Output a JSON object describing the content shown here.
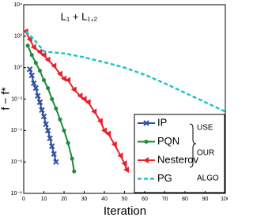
{
  "chart_data": {
    "type": "line",
    "title": "L₁ + L₁,₂",
    "xlabel": "Iteration",
    "ylabel": "f − f*",
    "yscale": "log",
    "grid": false,
    "legend": "lower right",
    "xlim": [
      0,
      100
    ],
    "xticks": [
      0,
      10,
      20,
      30,
      40,
      50,
      60,
      70,
      80,
      90,
      100
    ],
    "ylim": [
      1e-08,
      10000
    ],
    "yticks": [
      {
        "value": 10000,
        "label": "10⁴"
      },
      {
        "value": 100,
        "label": "10²"
      },
      {
        "value": 1,
        "label": "10⁰"
      },
      {
        "value": 0.01,
        "label": "10⁻²"
      },
      {
        "value": 0.0001,
        "label": "10⁻⁴"
      },
      {
        "value": 1e-06,
        "label": "10⁻⁶"
      },
      {
        "value": 1e-08,
        "label": "10⁻⁸"
      }
    ],
    "annotation": [
      "USE",
      "OUR",
      "ALGO"
    ],
    "series": [
      {
        "name": "IP",
        "color": "#2e4fa3",
        "marker": "x",
        "dashed": false,
        "x": [
          3,
          4,
          5,
          6,
          7,
          8,
          9,
          10,
          11,
          12,
          13,
          14,
          15,
          16
        ],
        "values": [
          0.79,
          0.32,
          0.1,
          0.05,
          0.016,
          0.0063,
          0.002,
          0.00079,
          0.00025,
          0.0001,
          3.2e-05,
          1e-05,
          3.2e-06,
          1e-06
        ]
      },
      {
        "name": "PQN",
        "color": "#1d8a3a",
        "marker": "dot",
        "dashed": false,
        "x": [
          2,
          4,
          6,
          8,
          10,
          12,
          14,
          16,
          18,
          20,
          22,
          24,
          25
        ],
        "values": [
          25,
          6.3,
          2,
          0.63,
          0.16,
          0.05,
          0.01,
          0.0025,
          0.0005,
          0.0001,
          1.6e-05,
          1.6e-06,
          2.5e-07
        ]
      },
      {
        "name": "Nesterov",
        "color": "#e8202a",
        "marker": "triangle",
        "dashed": false,
        "x": [
          1,
          3,
          5,
          8,
          10,
          12,
          15,
          18,
          20,
          22,
          25,
          28,
          30,
          32,
          35,
          38,
          40,
          42,
          45,
          48,
          50,
          51
        ],
        "values": [
          200,
          63,
          20,
          10,
          6.3,
          3.2,
          1.3,
          0.4,
          0.2,
          0.16,
          0.04,
          0.016,
          0.01,
          0.0063,
          0.0016,
          0.0004,
          0.0001,
          6.3e-05,
          1.3e-05,
          2.5e-06,
          8e-07,
          3.2e-07
        ]
      },
      {
        "name": "PG",
        "color": "#1fc4c8",
        "marker": "none",
        "dashed": true,
        "x": [
          1,
          5,
          10,
          12,
          20,
          30,
          40,
          50,
          60,
          70,
          80,
          90,
          100
        ],
        "values": [
          200,
          63,
          11,
          10,
          8,
          4.5,
          2.2,
          1,
          0.35,
          0.1,
          0.025,
          0.0063,
          0.0016
        ]
      }
    ]
  }
}
